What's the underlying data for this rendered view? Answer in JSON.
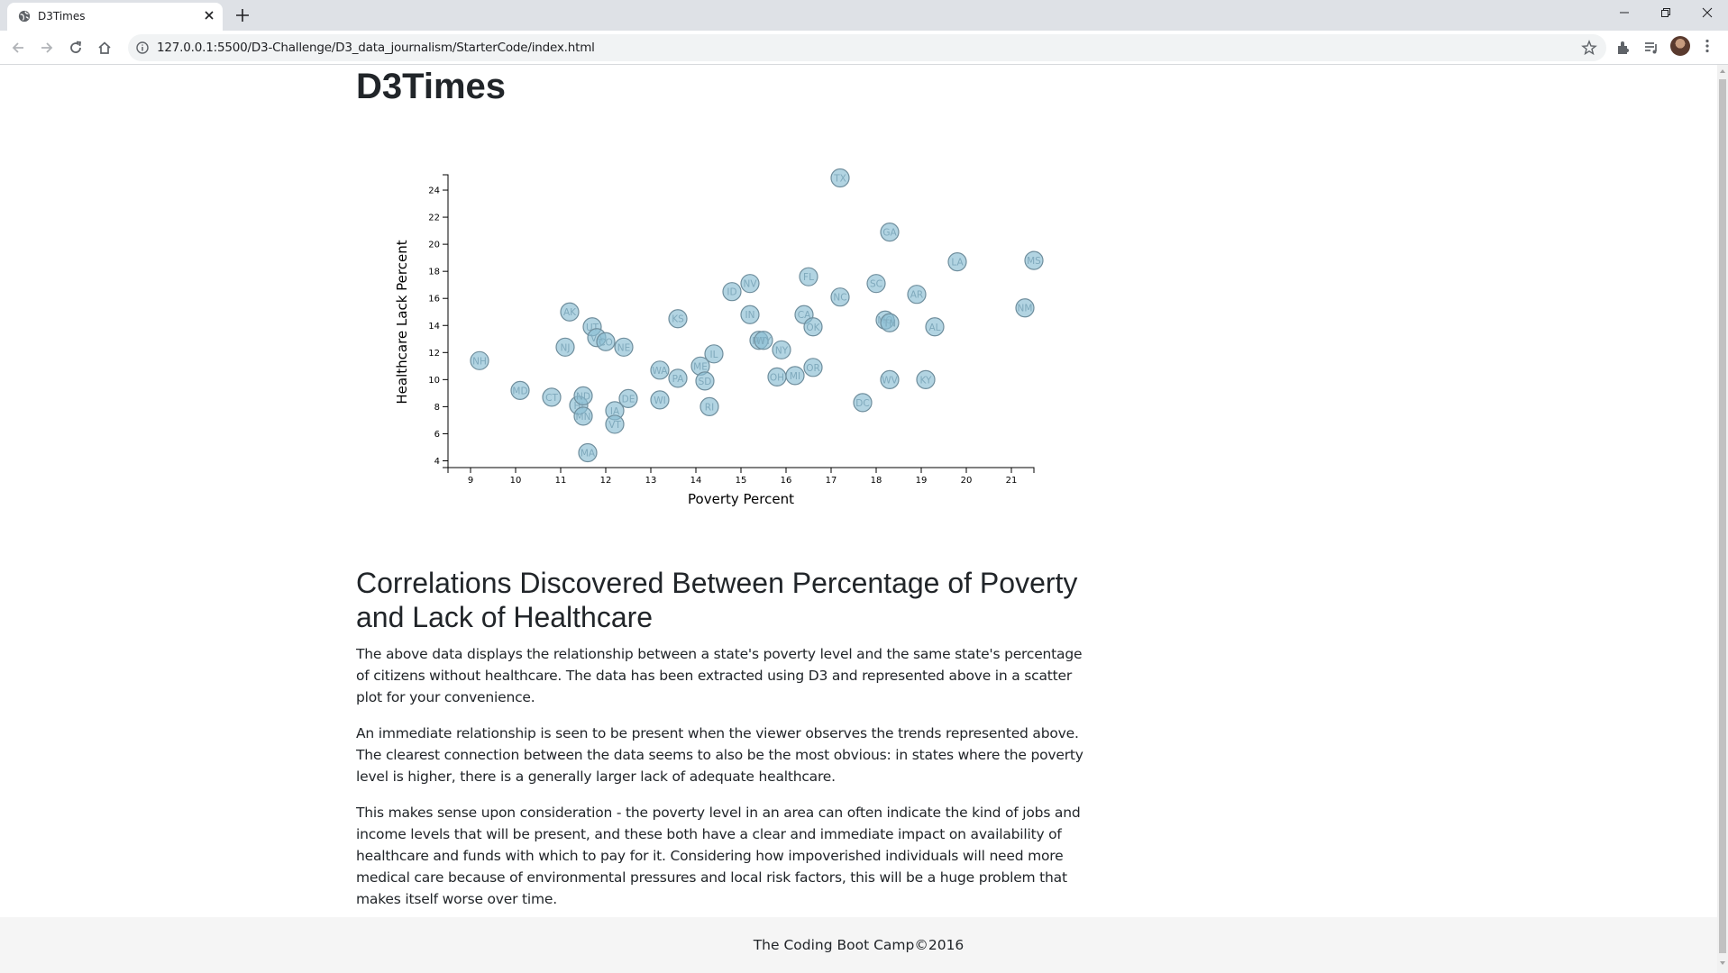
{
  "browser": {
    "tab_title": "D3Times",
    "url": "127.0.0.1:5500/D3-Challenge/D3_data_journalism/StarterCode/index.html"
  },
  "page": {
    "title": "D3Times",
    "article_heading": "Correlations Discovered Between Percentage of Poverty and Lack of Healthcare",
    "paragraphs": [
      "The above data displays the relationship between a state's poverty level and the same state's percentage of citizens without healthcare. The data has been extracted using D3 and represented above in a scatter plot for your convenience.",
      "An immediate relationship is seen to be present when the viewer observes the trends represented above. The clearest connection between the data seems to also be the most obvious: in states where the poverty level is higher, there is a generally larger lack of adequate healthcare.",
      "This makes sense upon consideration - the poverty level in an area can often indicate the kind of jobs and income levels that will be present, and these both have a clear and immediate impact on availability of healthcare and funds with which to pay for it. Considering how impoverished individuals will need more medical care because of environmental pressures and local risk factors, this will be a huge problem that makes itself worse over time."
    ],
    "footer": "The Coding Boot Camp©2016"
  },
  "chart_data": {
    "type": "scatter",
    "xlabel": "Poverty Percent",
    "ylabel": "Healthcare Lack Percent",
    "xlim": [
      8.5,
      21.5
    ],
    "ylim": [
      3.5,
      25
    ],
    "xticks": [
      9,
      10,
      11,
      12,
      13,
      14,
      15,
      16,
      17,
      18,
      19,
      20,
      21
    ],
    "yticks": [
      4,
      6,
      8,
      10,
      12,
      14,
      16,
      18,
      20,
      22,
      24
    ],
    "grid": false,
    "marker_color": "#89bdd3",
    "points": [
      {
        "label": "NH",
        "x": 9.2,
        "y": 11.4
      },
      {
        "label": "MD",
        "x": 10.1,
        "y": 9.2
      },
      {
        "label": "CT",
        "x": 10.8,
        "y": 8.7
      },
      {
        "label": "NJ",
        "x": 11.1,
        "y": 12.4
      },
      {
        "label": "AK",
        "x": 11.2,
        "y": 15.0
      },
      {
        "label": "HI",
        "x": 11.4,
        "y": 8.1
      },
      {
        "label": "ND",
        "x": 11.5,
        "y": 8.8
      },
      {
        "label": "MN",
        "x": 11.5,
        "y": 7.3
      },
      {
        "label": "MA",
        "x": 11.6,
        "y": 4.6
      },
      {
        "label": "UT",
        "x": 11.7,
        "y": 13.9
      },
      {
        "label": "VA",
        "x": 11.8,
        "y": 13.1
      },
      {
        "label": "CO",
        "x": 12.0,
        "y": 12.8
      },
      {
        "label": "IA",
        "x": 12.2,
        "y": 7.7
      },
      {
        "label": "VT",
        "x": 12.2,
        "y": 6.7
      },
      {
        "label": "NE",
        "x": 12.4,
        "y": 12.4
      },
      {
        "label": "DE",
        "x": 12.5,
        "y": 8.6
      },
      {
        "label": "WA",
        "x": 13.2,
        "y": 10.7
      },
      {
        "label": "WI",
        "x": 13.2,
        "y": 8.5
      },
      {
        "label": "KS",
        "x": 13.6,
        "y": 14.5
      },
      {
        "label": "PA",
        "x": 13.6,
        "y": 10.1
      },
      {
        "label": "ME",
        "x": 14.1,
        "y": 11.0
      },
      {
        "label": "SD",
        "x": 14.2,
        "y": 9.9
      },
      {
        "label": "RI",
        "x": 14.3,
        "y": 8.0
      },
      {
        "label": "IL",
        "x": 14.4,
        "y": 11.9
      },
      {
        "label": "ID",
        "x": 14.8,
        "y": 16.5
      },
      {
        "label": "NV",
        "x": 15.2,
        "y": 17.1
      },
      {
        "label": "IN",
        "x": 15.2,
        "y": 14.8
      },
      {
        "label": "MT",
        "x": 15.4,
        "y": 12.9
      },
      {
        "label": "WY",
        "x": 15.5,
        "y": 12.9
      },
      {
        "label": "OH",
        "x": 15.8,
        "y": 10.2
      },
      {
        "label": "NY",
        "x": 15.9,
        "y": 12.2
      },
      {
        "label": "MI",
        "x": 16.2,
        "y": 10.3
      },
      {
        "label": "CA",
        "x": 16.4,
        "y": 14.8
      },
      {
        "label": "FL",
        "x": 16.5,
        "y": 17.6
      },
      {
        "label": "OK",
        "x": 16.6,
        "y": 13.9
      },
      {
        "label": "OR",
        "x": 16.6,
        "y": 10.9
      },
      {
        "label": "TX",
        "x": 17.2,
        "y": 24.9
      },
      {
        "label": "NC",
        "x": 17.2,
        "y": 16.1
      },
      {
        "label": "DC",
        "x": 17.7,
        "y": 8.3
      },
      {
        "label": "SC",
        "x": 18.0,
        "y": 17.1
      },
      {
        "label": "MO",
        "x": 18.2,
        "y": 14.4
      },
      {
        "label": "TN",
        "x": 18.3,
        "y": 14.2
      },
      {
        "label": "GA",
        "x": 18.3,
        "y": 20.9
      },
      {
        "label": "WV",
        "x": 18.3,
        "y": 10.0
      },
      {
        "label": "AR",
        "x": 18.9,
        "y": 16.3
      },
      {
        "label": "KY",
        "x": 19.1,
        "y": 10.0
      },
      {
        "label": "AL",
        "x": 19.3,
        "y": 13.9
      },
      {
        "label": "LA",
        "x": 19.8,
        "y": 18.7
      },
      {
        "label": "NM",
        "x": 21.3,
        "y": 15.3
      },
      {
        "label": "MS",
        "x": 21.5,
        "y": 18.8
      }
    ]
  }
}
